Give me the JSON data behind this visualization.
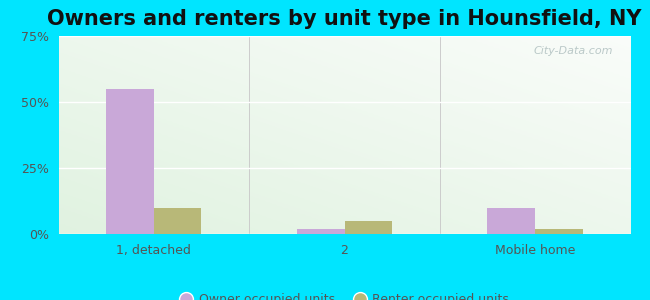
{
  "title": "Owners and renters by unit type in Hounsfield, NY",
  "categories": [
    "1, detached",
    "2",
    "Mobile home"
  ],
  "owner_values": [
    55.0,
    2.0,
    10.0
  ],
  "renter_values": [
    10.0,
    5.0,
    2.0
  ],
  "owner_color": "#c9a8d8",
  "renter_color": "#b8b878",
  "ylim": [
    0,
    75
  ],
  "yticks": [
    0,
    25,
    50,
    75
  ],
  "ytick_labels": [
    "0%",
    "25%",
    "50%",
    "75%"
  ],
  "legend_owner": "Owner occupied units",
  "legend_renter": "Renter occupied units",
  "outer_bg": "#00e5ff",
  "bar_width": 0.25,
  "title_fontsize": 15,
  "watermark": "City-Data.com"
}
